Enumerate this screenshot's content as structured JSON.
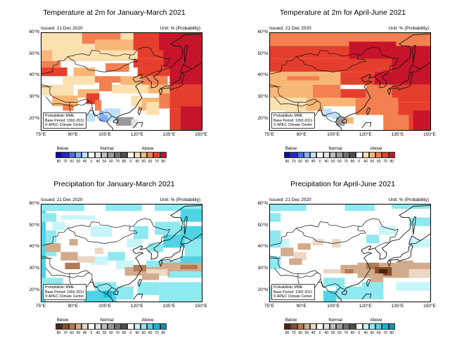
{
  "panels": [
    {
      "id": "temp-jfm",
      "title": "Temperature at 2m for January-March 2021",
      "issued": "Issued: 21 Dec 2020",
      "unit": "Unit: % (Probability)",
      "variable": "temperature",
      "note": [
        "Probabilistic MME",
        "Base Period: 1992-2011",
        "© APEC Climate Center"
      ]
    },
    {
      "id": "temp-amj",
      "title": "Temperature at 2m for April-June 2021",
      "issued": "Issued: 21 Dec 2020",
      "unit": "Unit: % (Probability)",
      "variable": "temperature",
      "note": [
        "Probabilistic MME",
        "Base Period: 1992-2011",
        "© APEC Climate Center"
      ]
    },
    {
      "id": "prec-jfm",
      "title": "Precipitation for January-March 2021",
      "issued": "Issued: 21 Dec 2020",
      "unit": "Unit: % (Probability)",
      "variable": "precipitation",
      "note": [
        "Probabilistic MME",
        "Base Period: 1992-2011",
        "© APEC Climate Center"
      ]
    },
    {
      "id": "prec-amj",
      "title": "Precipitation for April-June 2021",
      "issued": "Issued: 21 Dec 2020",
      "unit": "Unit: % (Probability)",
      "variable": "precipitation",
      "note": [
        "Probabilistic MME",
        "Base Period: 1992-2011",
        "© APEC Climate Center"
      ]
    }
  ],
  "axes": {
    "lat_labels": [
      "60°N",
      "50°N",
      "40°N",
      "30°N",
      "20°N"
    ],
    "lon_labels": [
      "75°E",
      "90°E",
      "105°E",
      "120°E",
      "135°E",
      "150°E"
    ]
  },
  "legend": {
    "categories": [
      "Below",
      "Normal",
      "Above"
    ],
    "numbers": [
      "80",
      "70",
      "60",
      "50",
      "40",
      "0",
      "40",
      "50",
      "60",
      "70",
      "80",
      "0",
      "40",
      "50",
      "60",
      "70",
      "80"
    ],
    "temperature_colors": [
      "#0a0aa8",
      "#2525d6",
      "#4a6ef0",
      "#7fb0f5",
      "#bfe0fb",
      "#ffffff",
      "#e3e3e3",
      "#bdbdbd",
      "#9a9a9a",
      "#727272",
      "#4d4d4d",
      "#ffffff",
      "#fbe0b0",
      "#f8b777",
      "#f28050",
      "#e63e2c",
      "#c8142a"
    ],
    "precipitation_colors": [
      "#4a2410",
      "#8a4d2a",
      "#b27b55",
      "#d2ab8c",
      "#ecd7c4",
      "#ffffff",
      "#e3e3e3",
      "#bdbdbd",
      "#9a9a9a",
      "#727272",
      "#4d4d4d",
      "#ffffff",
      "#c8f6f8",
      "#8fe9f0",
      "#4fd4e6",
      "#18b6d6",
      "#0a8fb8"
    ]
  }
}
